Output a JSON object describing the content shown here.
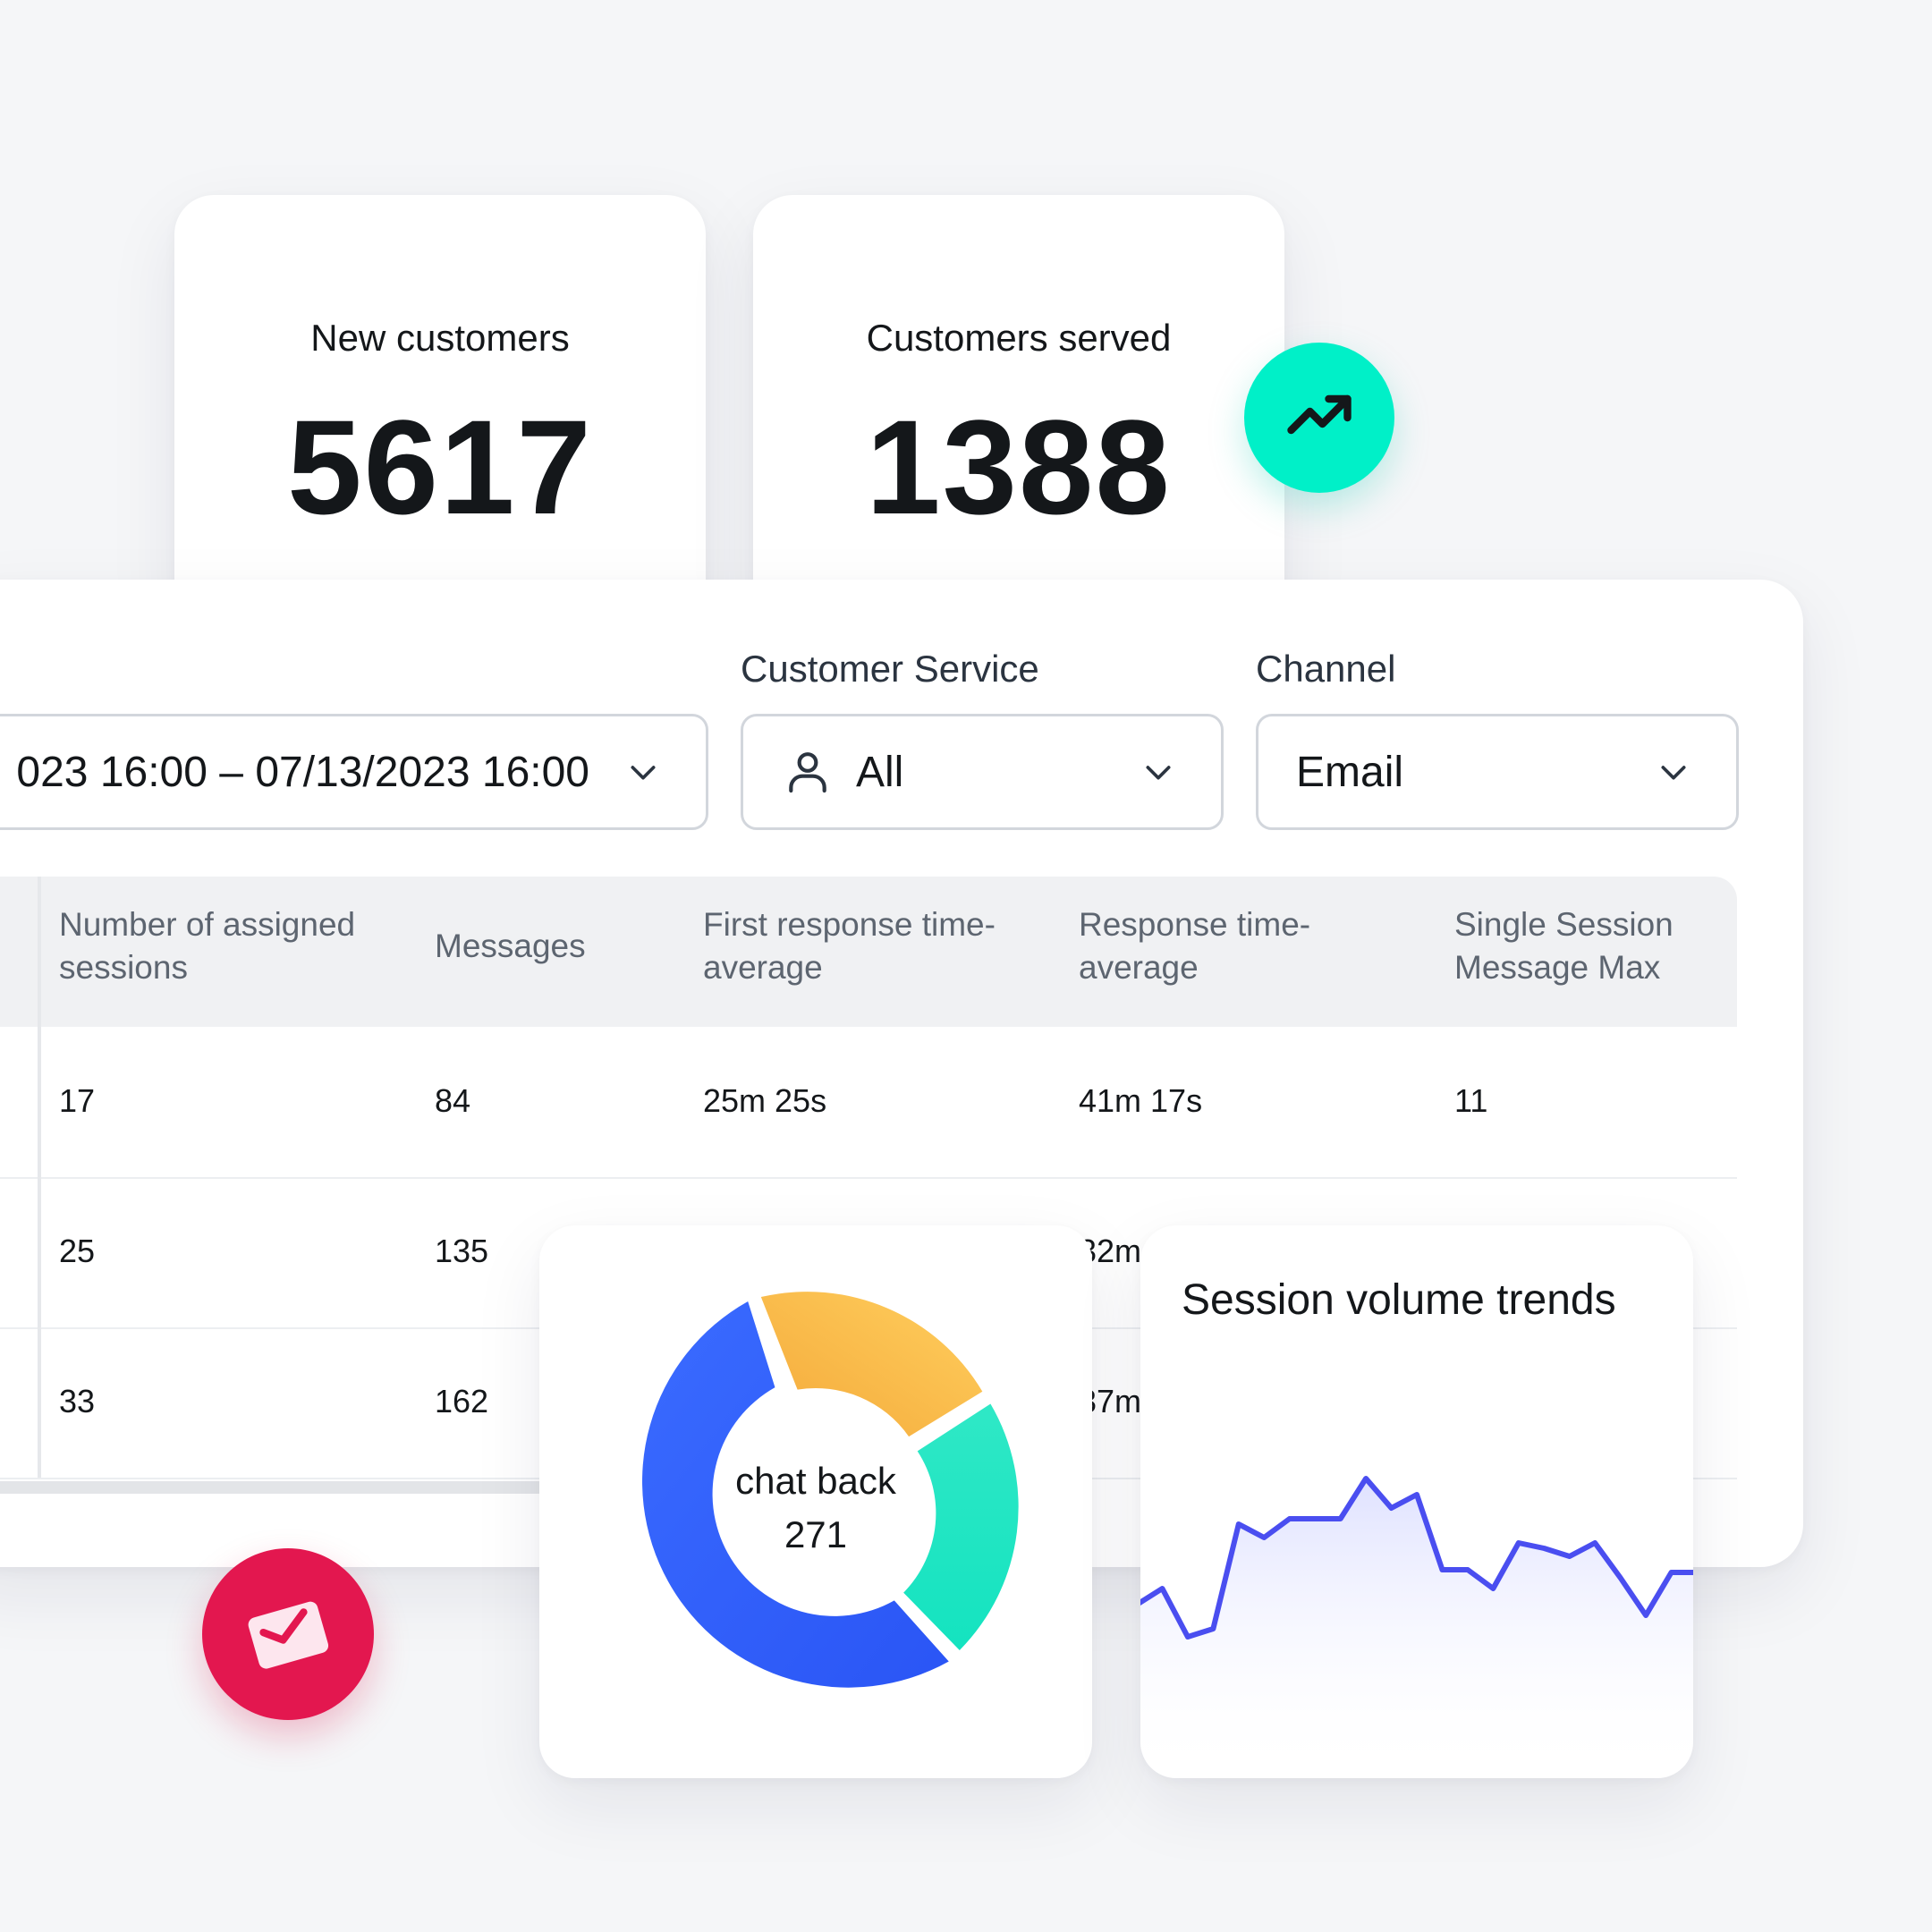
{
  "stats": {
    "new_customers": {
      "label": "New customers",
      "value": "5617"
    },
    "customers_served": {
      "label": "Customers served",
      "value": "1388"
    }
  },
  "filters": {
    "date_range": {
      "value": "023 16:00 – 07/13/2023 16:00"
    },
    "customer_service": {
      "label": "Customer Service",
      "value": "All"
    },
    "channel": {
      "label": "Channel",
      "value": "Email"
    }
  },
  "table": {
    "columns": [
      [
        "Number of assigned",
        "sessions"
      ],
      [
        "Messages"
      ],
      [
        "First response time-",
        "average"
      ],
      [
        "Response time-",
        "average"
      ],
      [
        "Single Session",
        "Message Max"
      ]
    ],
    "rows": [
      [
        "17",
        "84",
        "25m 25s",
        "41m 17s",
        "11"
      ],
      [
        "25",
        "135",
        "",
        "32m",
        ""
      ],
      [
        "33",
        "162",
        "",
        "37m",
        ""
      ]
    ]
  },
  "donut": {
    "center_label": "chat back",
    "center_value": "271",
    "colors": {
      "blue": "#2f5cff",
      "yellow": "#fbbf4a",
      "teal": "#22e5c8"
    }
  },
  "trend": {
    "title": "Session volume trends",
    "line_color": "#4a4ef0",
    "values": [
      32,
      38,
      20,
      23,
      62,
      57,
      64,
      64,
      64,
      79,
      68,
      73,
      45,
      45,
      38,
      55,
      53,
      50,
      55,
      42,
      28,
      44,
      44
    ]
  },
  "icons": [
    "trending-up-icon",
    "user-icon",
    "chevron-down-icon",
    "mail-icon"
  ],
  "accent_colors": {
    "trend_badge": "#00f0c8",
    "mail_badge": "#e3174f"
  }
}
